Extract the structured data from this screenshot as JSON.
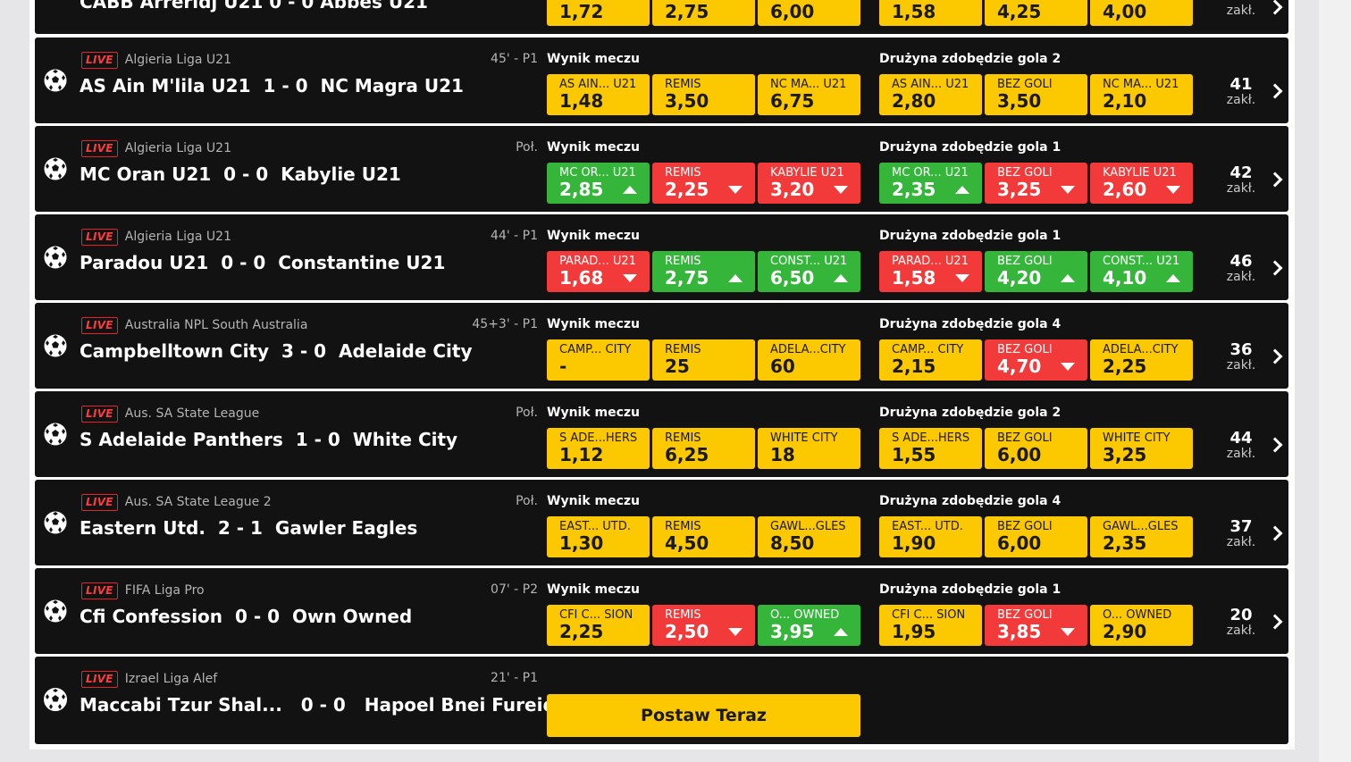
{
  "top_row": {
    "match_text": "CABB Arreridj U21  0 - 0  Abbes U21",
    "odds1": [
      "1,72",
      "2,75",
      "6,00"
    ],
    "odds2": [
      "1,58",
      "4,25",
      "4,00"
    ],
    "zakl": "zakł."
  },
  "market_labels": {
    "result": "Wynik meczu"
  },
  "zakl_label": "zakł.",
  "live_label": "LIVE",
  "matches": [
    {
      "league": "Algieria Liga U21",
      "time": "45' - P1",
      "home": "AS Ain M'lila U21",
      "score": "1 - 0",
      "away": "NC Magra U21",
      "market2": "Drużyna zdobędzie gola 2",
      "odds1": [
        {
          "label": "AS AIN...  U21",
          "value": "1,48",
          "state": "neutral"
        },
        {
          "label": "REMIS",
          "value": "3,50",
          "state": "neutral"
        },
        {
          "label": "NC MA...  U21",
          "value": "6,75",
          "state": "neutral"
        }
      ],
      "odds2": [
        {
          "label": "AS AIN...  U21",
          "value": "2,80",
          "state": "neutral"
        },
        {
          "label": "BEZ GOLI",
          "value": "3,50",
          "state": "neutral"
        },
        {
          "label": "NC MA...  U21",
          "value": "2,10",
          "state": "neutral"
        }
      ],
      "count": "41"
    },
    {
      "league": "Algieria Liga U21",
      "time": "Poł.",
      "home": "MC Oran U21",
      "score": "0 - 0",
      "away": "Kabylie U21",
      "market2": "Drużyna zdobędzie gola 1",
      "odds1": [
        {
          "label": "MC OR...  U21",
          "value": "2,85",
          "state": "up"
        },
        {
          "label": "REMIS",
          "value": "2,25",
          "state": "down"
        },
        {
          "label": "KABYLIE U21",
          "value": "3,20",
          "state": "down"
        }
      ],
      "odds2": [
        {
          "label": "MC OR...  U21",
          "value": "2,35",
          "state": "up"
        },
        {
          "label": "BEZ GOLI",
          "value": "3,25",
          "state": "down"
        },
        {
          "label": "KABYLIE U21",
          "value": "2,60",
          "state": "down"
        }
      ],
      "count": "42"
    },
    {
      "league": "Algieria Liga U21",
      "time": "44' - P1",
      "home": "Paradou U21",
      "score": "0 - 0",
      "away": "Constantine U21",
      "market2": "Drużyna zdobędzie gola 1",
      "odds1": [
        {
          "label": "PARAD...  U21",
          "value": "1,68",
          "state": "down"
        },
        {
          "label": "REMIS",
          "value": "2,75",
          "state": "up"
        },
        {
          "label": "CONST...  U21",
          "value": "6,50",
          "state": "up"
        }
      ],
      "odds2": [
        {
          "label": "PARAD...  U21",
          "value": "1,58",
          "state": "down"
        },
        {
          "label": "BEZ GOLI",
          "value": "4,20",
          "state": "up"
        },
        {
          "label": "CONST...  U21",
          "value": "4,10",
          "state": "up"
        }
      ],
      "count": "46"
    },
    {
      "league": "Australia NPL South Australia",
      "time": "45+3' - P1",
      "home": "Campbelltown City",
      "score": "3 - 0",
      "away": "Adelaide City",
      "market2": "Drużyna zdobędzie gola 4",
      "odds1": [
        {
          "label": "CAMP...  CITY",
          "value": "-",
          "state": "neutral"
        },
        {
          "label": "REMIS",
          "value": "25",
          "state": "neutral"
        },
        {
          "label": "ADELA...CITY",
          "value": "60",
          "state": "neutral"
        }
      ],
      "odds2": [
        {
          "label": "CAMP...  CITY",
          "value": "2,15",
          "state": "neutral"
        },
        {
          "label": "BEZ GOLI",
          "value": "4,70",
          "state": "down"
        },
        {
          "label": "ADELA...CITY",
          "value": "2,25",
          "state": "neutral"
        }
      ],
      "count": "36"
    },
    {
      "league": "Aus. SA State League",
      "time": "Poł.",
      "home": "S Adelaide Panthers",
      "score": "1 - 0",
      "away": "White City",
      "market2": "Drużyna zdobędzie gola 2",
      "odds1": [
        {
          "label": "S ADE...HERS",
          "value": "1,12",
          "state": "neutral"
        },
        {
          "label": "REMIS",
          "value": "6,25",
          "state": "neutral"
        },
        {
          "label": "WHITE CITY",
          "value": "18",
          "state": "neutral"
        }
      ],
      "odds2": [
        {
          "label": "S ADE...HERS",
          "value": "1,55",
          "state": "neutral"
        },
        {
          "label": "BEZ GOLI",
          "value": "6,00",
          "state": "neutral"
        },
        {
          "label": "WHITE CITY",
          "value": "3,25",
          "state": "neutral"
        }
      ],
      "count": "44"
    },
    {
      "league": "Aus. SA State League 2",
      "time": "Poł.",
      "home": "Eastern Utd.",
      "score": "2 - 1",
      "away": "Gawler Eagles",
      "market2": "Drużyna zdobędzie gola 4",
      "odds1": [
        {
          "label": "EAST...  UTD.",
          "value": "1,30",
          "state": "neutral"
        },
        {
          "label": "REMIS",
          "value": "4,50",
          "state": "neutral"
        },
        {
          "label": "GAWL...GLES",
          "value": "8,50",
          "state": "neutral"
        }
      ],
      "odds2": [
        {
          "label": "EAST...  UTD.",
          "value": "1,90",
          "state": "neutral"
        },
        {
          "label": "BEZ GOLI",
          "value": "6,00",
          "state": "neutral"
        },
        {
          "label": "GAWL...GLES",
          "value": "2,35",
          "state": "neutral"
        }
      ],
      "count": "37"
    },
    {
      "league": "FIFA Liga Pro",
      "time": "07' - P2",
      "home": "Cfi Confession",
      "score": "0 - 0",
      "away": "Own Owned",
      "market2": "Drużyna zdobędzie gola 1",
      "odds1": [
        {
          "label": "CFI C...  SION",
          "value": "2,25",
          "state": "neutral"
        },
        {
          "label": "REMIS",
          "value": "2,50",
          "state": "down"
        },
        {
          "label": "O...  OWNED",
          "value": "3,95",
          "state": "up"
        }
      ],
      "odds2": [
        {
          "label": "CFI C...  SION",
          "value": "1,95",
          "state": "neutral"
        },
        {
          "label": "BEZ GOLI",
          "value": "3,85",
          "state": "down"
        },
        {
          "label": "O...  OWNED",
          "value": "2,90",
          "state": "neutral"
        }
      ],
      "count": "20"
    }
  ],
  "last_match": {
    "league": "Izrael Liga Alef",
    "time": "21' - P1",
    "home": "Maccabi Tzur Shal...",
    "score": "0 - 0",
    "away": "Hapoel Bnei Fureidis...",
    "cta": "Postaw Teraz"
  },
  "colors": {
    "row_bg": "#121212",
    "odd_neutral": "#fcc800",
    "odd_up": "#35b63b",
    "odd_down": "#f23a3a",
    "live": "#e8202a"
  },
  "icons": {
    "sport": "soccer-ball-icon",
    "more": "chevron-right-icon"
  }
}
